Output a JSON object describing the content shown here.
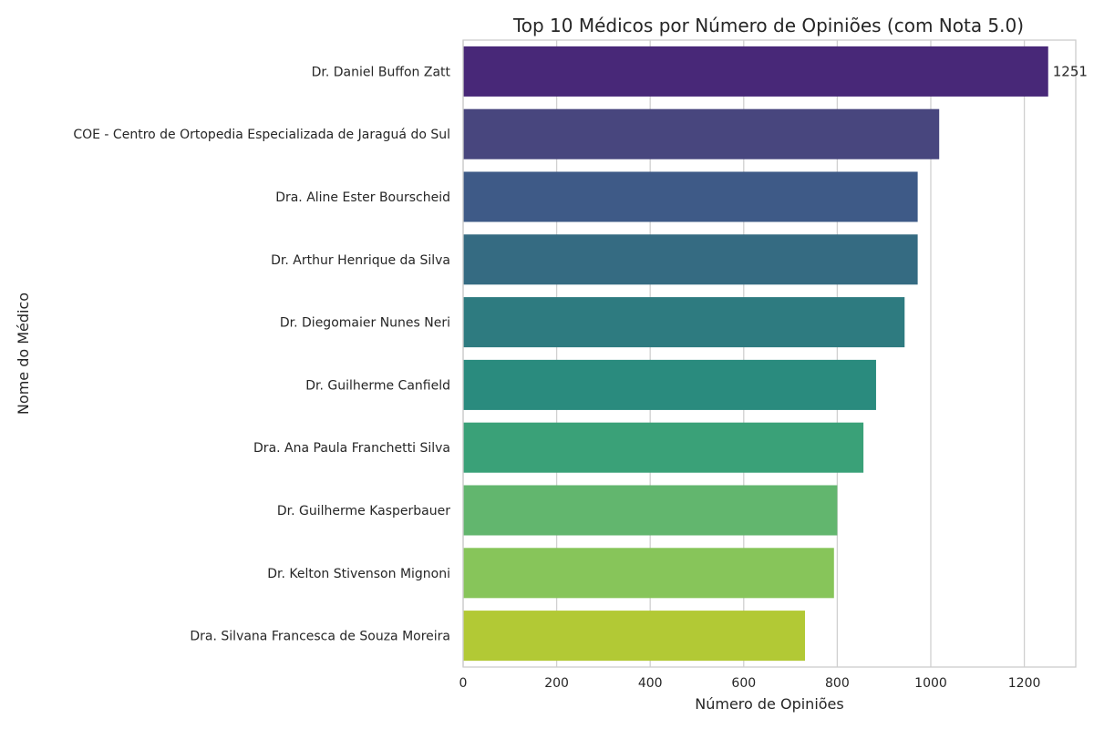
{
  "chart_data": {
    "type": "bar",
    "orientation": "horizontal",
    "title": "Top 10 Médicos por Número de Opiniões (com Nota 5.0)",
    "xlabel": "Número de Opiniões",
    "ylabel": "Nome do Médico",
    "xlim": [
      0,
      1310
    ],
    "xticks": [
      0,
      200,
      400,
      600,
      800,
      1000,
      1200
    ],
    "grid": true,
    "categories": [
      "Dr. Daniel Buffon Zatt",
      "COE - Centro de Ortopedia Especializada de Jaraguá do Sul",
      "Dra. Aline Ester Bourscheid",
      "Dr. Arthur Henrique da Silva",
      "Dr. Diegomaier Nunes Neri",
      "Dr. Guilherme Canfield",
      "Dra. Ana Paula Franchetti Silva",
      "Dr. Guilherme Kasperbauer",
      "Dr. Kelton Stivenson Mignoni",
      "Dra. Silvana Francesca de Souza Moreira"
    ],
    "values": [
      1251,
      1018,
      972,
      972,
      944,
      883,
      856,
      800,
      793,
      731
    ],
    "colors": [
      "#482878",
      "#48467e",
      "#3e5a87",
      "#356b82",
      "#2e7b80",
      "#2a8b7e",
      "#3aa178",
      "#62b66e",
      "#87c55a",
      "#b2c935"
    ],
    "data_labels": [
      {
        "index": 0,
        "text": "1251"
      }
    ]
  }
}
